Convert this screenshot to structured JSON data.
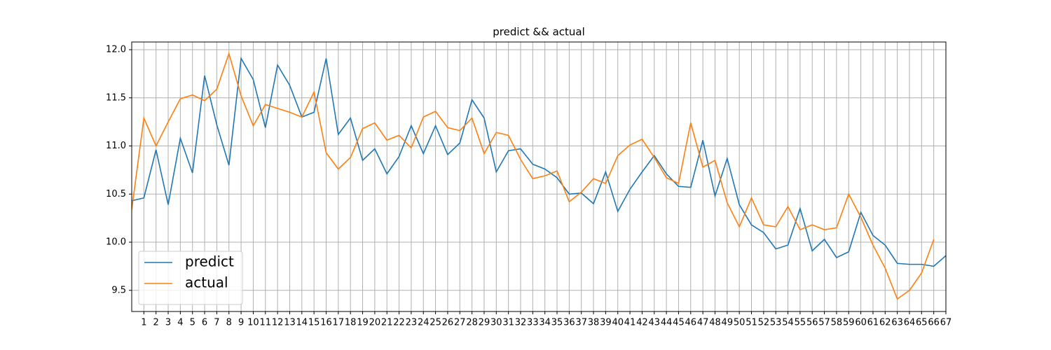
{
  "chart_data": {
    "type": "line",
    "title": "predict && actual",
    "x": [
      0,
      1,
      2,
      3,
      4,
      5,
      6,
      7,
      8,
      9,
      10,
      11,
      12,
      13,
      14,
      15,
      16,
      17,
      18,
      19,
      20,
      21,
      22,
      23,
      24,
      25,
      26,
      27,
      28,
      29,
      30,
      31,
      32,
      33,
      34,
      35,
      36,
      37,
      38,
      39,
      40,
      41,
      42,
      43,
      44,
      45,
      46,
      47,
      48,
      49,
      50,
      51,
      52,
      53,
      54,
      55,
      56,
      57,
      58,
      59,
      60,
      61,
      62,
      63,
      64,
      65,
      66,
      67
    ],
    "series": [
      {
        "name": "predict",
        "color": "#1f77b4",
        "values": [
          10.43,
          10.46,
          10.96,
          10.39,
          11.08,
          10.72,
          11.73,
          11.22,
          10.8,
          11.91,
          11.69,
          11.19,
          11.84,
          11.63,
          11.3,
          11.35,
          11.91,
          11.12,
          11.29,
          10.85,
          10.97,
          10.71,
          10.89,
          11.21,
          10.92,
          11.21,
          10.91,
          11.03,
          11.48,
          11.29,
          10.73,
          10.95,
          10.97,
          10.81,
          10.76,
          10.67,
          10.5,
          10.51,
          10.4,
          10.73,
          10.32,
          10.55,
          10.73,
          10.9,
          10.71,
          10.58,
          10.57,
          11.06,
          10.48,
          10.87,
          10.39,
          10.18,
          10.1,
          9.93,
          9.97,
          10.35,
          9.91,
          10.03,
          9.84,
          9.9,
          10.31,
          10.07,
          9.97,
          9.78,
          9.77,
          9.77,
          9.75,
          9.86
        ]
      },
      {
        "name": "actual",
        "color": "#ff7f0e",
        "values": [
          10.34,
          11.29,
          11.0,
          11.25,
          11.49,
          11.53,
          11.47,
          11.59,
          11.96,
          11.52,
          11.21,
          11.43,
          11.39,
          11.35,
          11.3,
          11.56,
          10.93,
          10.76,
          10.88,
          11.18,
          11.24,
          11.06,
          11.11,
          10.98,
          11.3,
          11.36,
          11.19,
          11.16,
          11.29,
          10.92,
          11.14,
          11.11,
          10.86,
          10.66,
          10.69,
          10.74,
          10.42,
          10.52,
          10.66,
          10.61,
          10.9,
          11.01,
          11.07,
          10.88,
          10.67,
          10.61,
          11.24,
          10.78,
          10.85,
          10.41,
          10.16,
          10.46,
          10.18,
          10.16,
          10.37,
          10.13,
          10.18,
          10.13,
          10.15,
          10.5,
          10.26,
          9.97,
          9.73,
          9.41,
          9.5,
          9.68,
          10.03,
          null
        ]
      }
    ],
    "xlim": [
      0,
      67
    ],
    "xticks": [
      1,
      2,
      3,
      4,
      5,
      6,
      7,
      8,
      9,
      10,
      11,
      12,
      13,
      14,
      15,
      16,
      17,
      18,
      19,
      20,
      21,
      22,
      23,
      24,
      25,
      26,
      27,
      28,
      29,
      30,
      31,
      32,
      33,
      34,
      35,
      36,
      37,
      38,
      39,
      40,
      41,
      42,
      43,
      44,
      45,
      46,
      47,
      48,
      49,
      50,
      51,
      52,
      53,
      54,
      55,
      56,
      57,
      58,
      59,
      60,
      61,
      62,
      63,
      64,
      65,
      66,
      67
    ],
    "ylim": [
      9.28,
      12.08
    ],
    "yticks": [
      9.5,
      {
        "value": 10,
        "label": "10.0"
      },
      10.5,
      {
        "value": 11,
        "label": "11.0"
      },
      11.5,
      {
        "value": 12,
        "label": "12.0"
      }
    ],
    "grid": true,
    "legend": "lower left"
  }
}
